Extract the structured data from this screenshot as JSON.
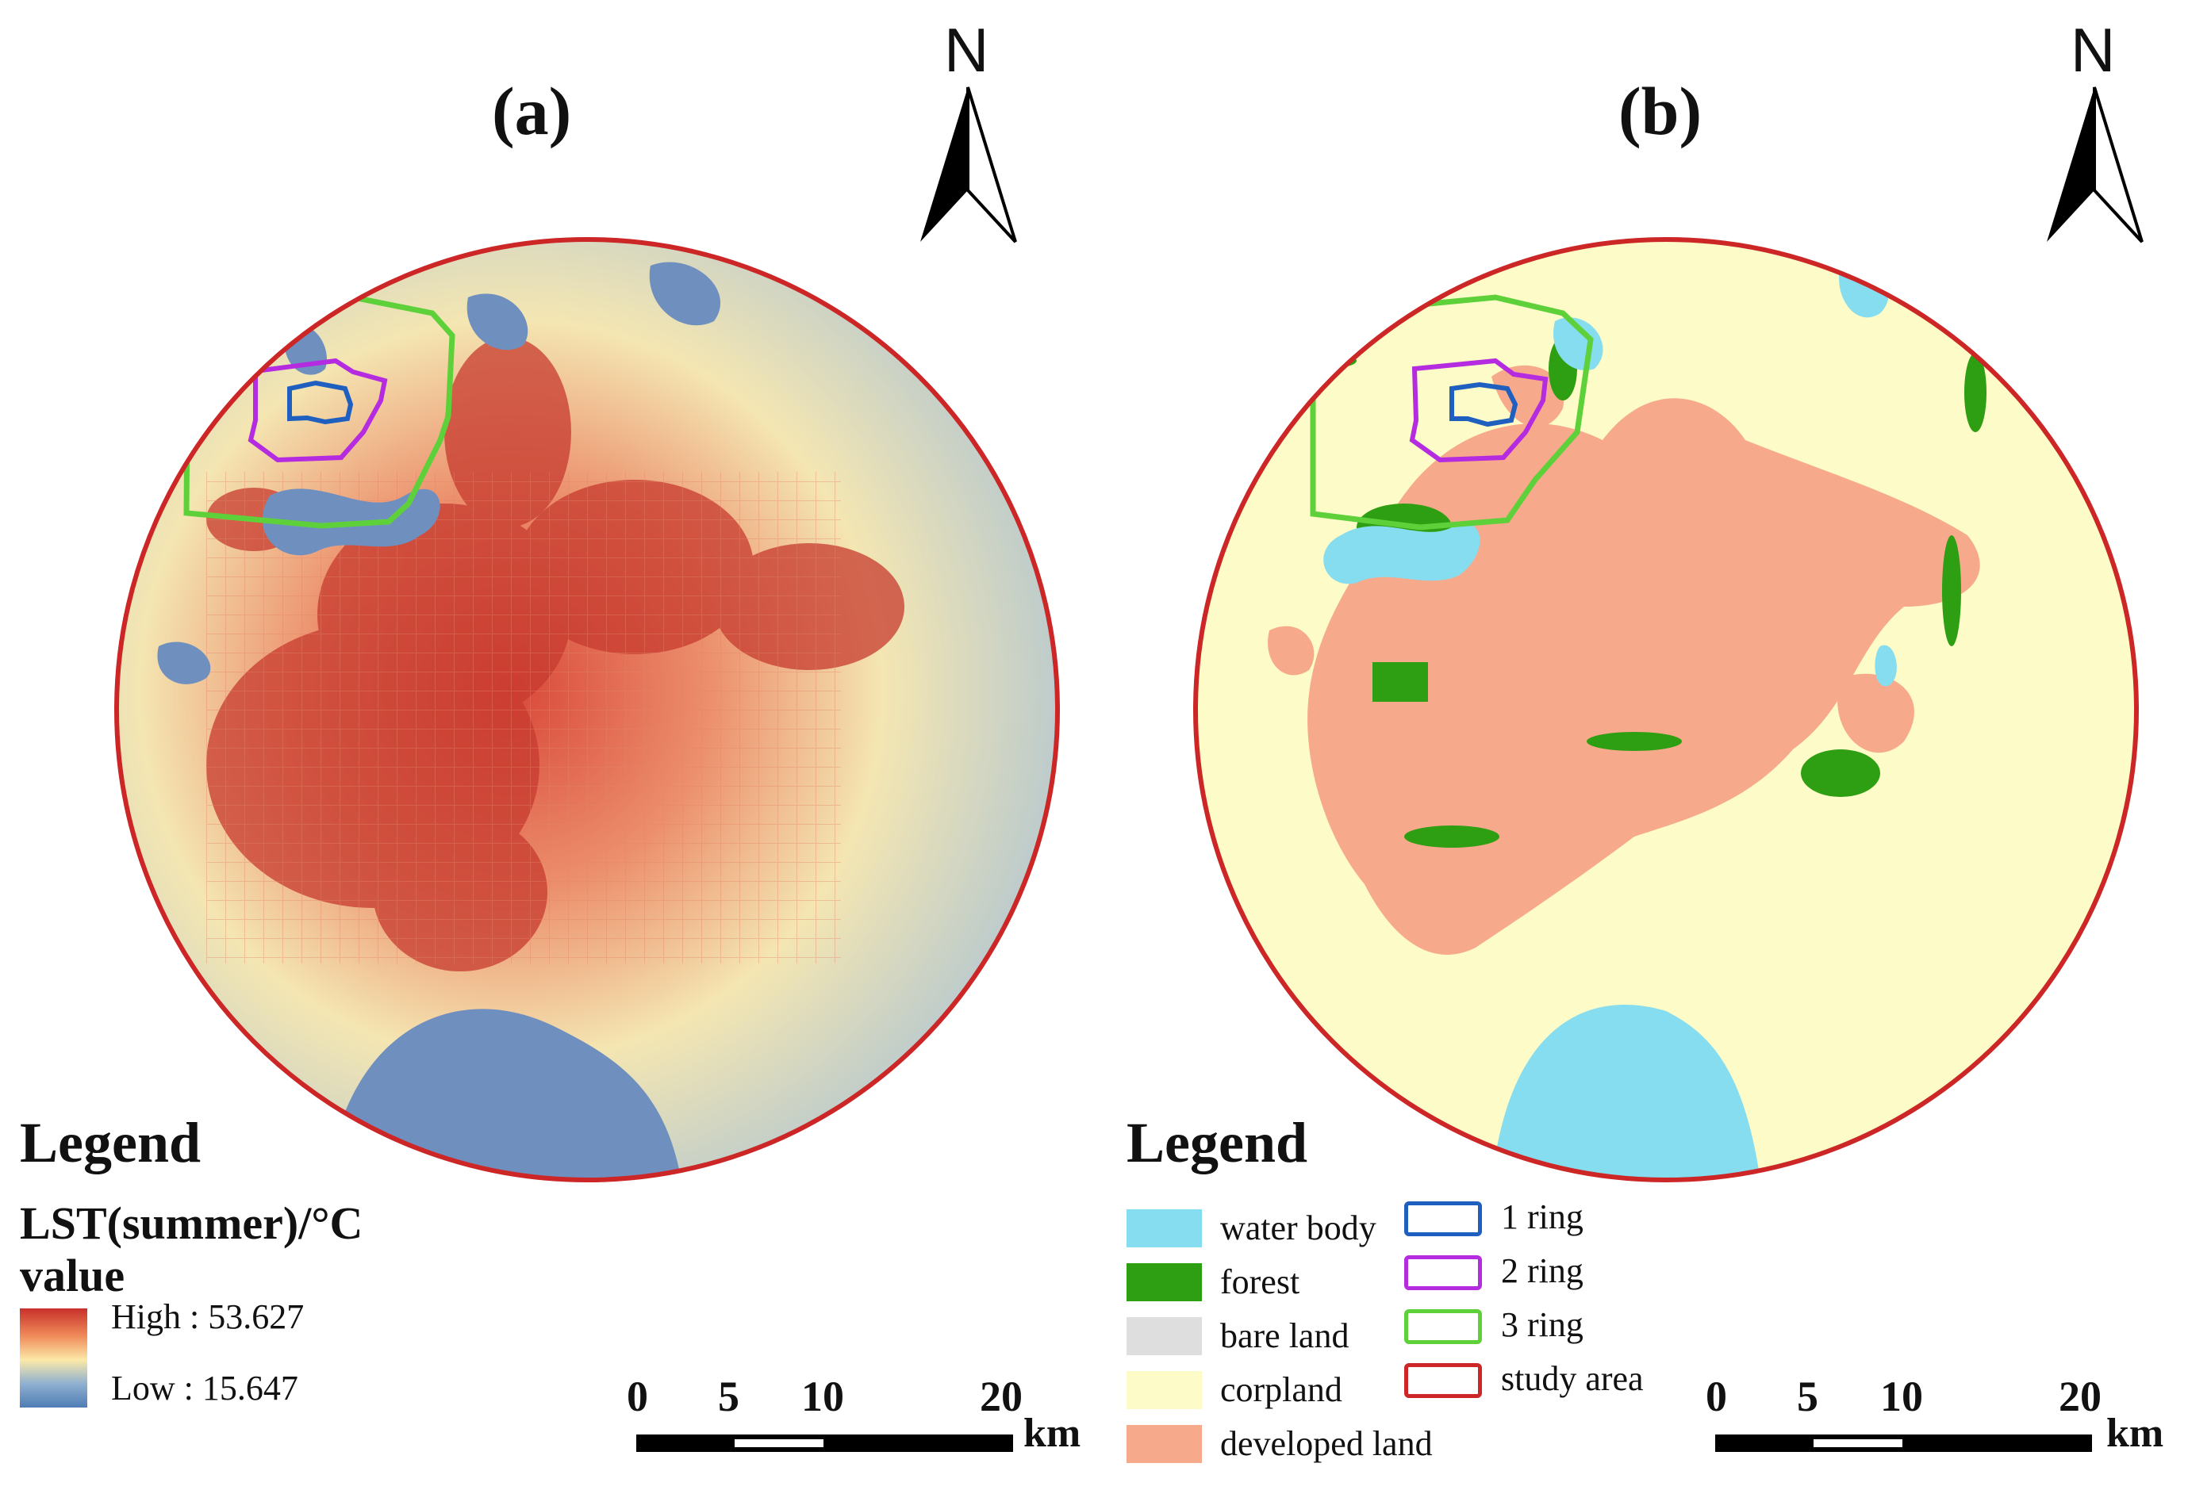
{
  "panels": {
    "a": {
      "label": "(a)",
      "north_label": "N",
      "legend": {
        "title": "Legend",
        "variable": "LST(summer)/°C",
        "value_word": "value",
        "high_label": "High : 53.627",
        "low_label": "Low : 15.647",
        "ramp_colors": [
          "#c8302a",
          "#f08c5a",
          "#fbe9a8",
          "#8fb0d0",
          "#4f7db5"
        ]
      },
      "scale": {
        "ticks": [
          "0",
          "5",
          "10",
          "20"
        ],
        "unit": "km"
      }
    },
    "b": {
      "label": "(b)",
      "north_label": "N",
      "legend": {
        "title": "Legend",
        "landcover": [
          {
            "label": "water body",
            "color": "#87ddf0"
          },
          {
            "label": "forest",
            "color": "#2e9e12"
          },
          {
            "label": "bare land",
            "color": "#dedede"
          },
          {
            "label": "corpland",
            "color": "#fdfbc7"
          },
          {
            "label": "developed land",
            "color": "#f7a98b"
          }
        ],
        "rings": [
          {
            "label": "1 ring",
            "color": "#1f5fbf"
          },
          {
            "label": "2 ring",
            "color": "#b42be0"
          },
          {
            "label": "3 ring",
            "color": "#5ed13a"
          },
          {
            "label": "study area",
            "color": "#cc2626"
          }
        ]
      },
      "scale": {
        "ticks": [
          "0",
          "5",
          "10",
          "20"
        ],
        "unit": "km"
      }
    }
  }
}
